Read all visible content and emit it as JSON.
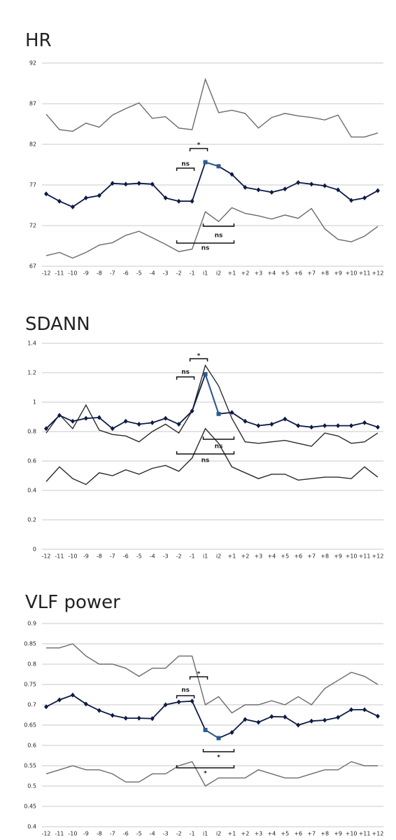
{
  "chart_data": [
    {
      "type": "line",
      "title": "HR",
      "categories": [
        "-12",
        "-11",
        "-10",
        "-9",
        "-8",
        "-7",
        "-6",
        "-5",
        "-4",
        "-3",
        "-2",
        "-1",
        "i1",
        "i2",
        "+1",
        "+2",
        "+3",
        "+4",
        "+5",
        "+6",
        "+7",
        "+8",
        "+9",
        "+10",
        "+11",
        "+12"
      ],
      "ylim": [
        67,
        92
      ],
      "yticks": [
        92,
        87,
        82,
        77,
        72,
        67
      ],
      "grid": true,
      "series": [
        {
          "color": "#6b6b6b",
          "values": [
            85.7,
            83.8,
            83.6,
            84.6,
            84.1,
            85.6,
            86.4,
            87.1,
            85.2,
            85.4,
            84.0,
            83.8,
            90.0,
            85.9,
            86.2,
            85.8,
            84.0,
            85.3,
            85.8,
            85.5,
            85.3,
            85.0,
            85.6,
            82.9,
            82.9,
            83.4
          ]
        },
        {
          "color": "#6b6b6b",
          "values": [
            68.3,
            68.7,
            68.0,
            68.7,
            69.6,
            69.9,
            70.8,
            71.3,
            70.5,
            69.7,
            68.8,
            69.1,
            73.7,
            72.5,
            74.2,
            73.5,
            73.2,
            72.8,
            73.3,
            72.9,
            74.1,
            71.6,
            70.3,
            70.0,
            70.7,
            71.9
          ]
        },
        {
          "color": "#0d1b45",
          "markers": true,
          "values": [
            75.9,
            75.0,
            74.3,
            75.4,
            75.7,
            77.2,
            77.1,
            77.2,
            77.1,
            75.4,
            75.0,
            75.0,
            79.8,
            79.3,
            78.3,
            76.7,
            76.4,
            76.1,
            76.5,
            77.3,
            77.1,
            76.9,
            76.4,
            75.1,
            75.4,
            76.3
          ]
        }
      ],
      "annotations": [
        "ns",
        "*",
        "ns",
        "ns"
      ]
    },
    {
      "type": "line",
      "title": "SDANN",
      "categories": [
        "-12",
        "-11",
        "-10",
        "-9",
        "-8",
        "-7",
        "-6",
        "-5",
        "-4",
        "-3",
        "-2",
        "-1",
        "i1",
        "i2",
        "+1",
        "+2",
        "+3",
        "+4",
        "+5",
        "+6",
        "+7",
        "+8",
        "+9",
        "+10",
        "+11",
        "+12"
      ],
      "ylim": [
        0,
        1.4
      ],
      "yticks": [
        1.4,
        1.2,
        1,
        0.8,
        0.6,
        0.4,
        0.2,
        0
      ],
      "grid": true,
      "series": [
        {
          "color": "#2b2b2b",
          "values": [
            0.79,
            0.915,
            0.82,
            0.98,
            0.81,
            0.78,
            0.77,
            0.73,
            0.8,
            0.85,
            0.79,
            0.94,
            1.25,
            1.11,
            0.89,
            0.73,
            0.72,
            0.73,
            0.74,
            0.72,
            0.7,
            0.79,
            0.77,
            0.72,
            0.73,
            0.79
          ]
        },
        {
          "color": "#2b2b2b",
          "values": [
            0.46,
            0.56,
            0.48,
            0.44,
            0.52,
            0.5,
            0.54,
            0.51,
            0.55,
            0.57,
            0.53,
            0.62,
            0.82,
            0.72,
            0.56,
            0.52,
            0.48,
            0.51,
            0.51,
            0.47,
            0.48,
            0.49,
            0.49,
            0.48,
            0.56,
            0.49
          ]
        },
        {
          "color": "#0d1b45",
          "markers": true,
          "values": [
            0.82,
            0.91,
            0.87,
            0.89,
            0.895,
            0.82,
            0.87,
            0.85,
            0.86,
            0.89,
            0.85,
            0.94,
            1.19,
            0.92,
            0.93,
            0.87,
            0.84,
            0.85,
            0.885,
            0.84,
            0.83,
            0.84,
            0.84,
            0.84,
            0.86,
            0.83
          ]
        }
      ],
      "annotations": [
        "ns",
        "*",
        "ns",
        "ns"
      ]
    },
    {
      "type": "line",
      "title": "VLF power",
      "categories": [
        "-12",
        "-11",
        "-10",
        "-9",
        "-8",
        "-7",
        "-6",
        "-5",
        "-4",
        "-3",
        "-2",
        "-1",
        "i1",
        "i2",
        "+1",
        "+2",
        "+3",
        "+4",
        "+5",
        "+6",
        "+7",
        "+8",
        "+9",
        "+10",
        "+11",
        "+12"
      ],
      "ylim": [
        0.4,
        0.9
      ],
      "yticks": [
        0.9,
        0.85,
        0.8,
        0.75,
        0.7,
        0.65,
        0.6,
        0.55,
        0.5,
        0.45,
        0.4
      ],
      "grid": true,
      "series": [
        {
          "color": "#6b6b6b",
          "values": [
            0.84,
            0.84,
            0.85,
            0.82,
            0.8,
            0.8,
            0.79,
            0.77,
            0.79,
            0.79,
            0.82,
            0.82,
            0.7,
            0.72,
            0.68,
            0.7,
            0.7,
            0.71,
            0.7,
            0.72,
            0.7,
            0.74,
            0.76,
            0.78,
            0.77,
            0.75
          ]
        },
        {
          "color": "#6b6b6b",
          "values": [
            0.53,
            0.54,
            0.55,
            0.54,
            0.54,
            0.53,
            0.51,
            0.51,
            0.53,
            0.53,
            0.55,
            0.56,
            0.5,
            0.52,
            0.52,
            0.52,
            0.54,
            0.53,
            0.52,
            0.52,
            0.53,
            0.54,
            0.54,
            0.56,
            0.55,
            0.55
          ]
        },
        {
          "color": "#0d1b45",
          "markers": true,
          "values": [
            0.695,
            0.712,
            0.724,
            0.702,
            0.686,
            0.674,
            0.667,
            0.667,
            0.666,
            0.7,
            0.707,
            0.709,
            0.638,
            0.618,
            0.632,
            0.664,
            0.657,
            0.671,
            0.67,
            0.65,
            0.66,
            0.662,
            0.669,
            0.688,
            0.688,
            0.672
          ]
        }
      ],
      "annotations": [
        "ns",
        "*",
        "*",
        "*"
      ]
    }
  ]
}
